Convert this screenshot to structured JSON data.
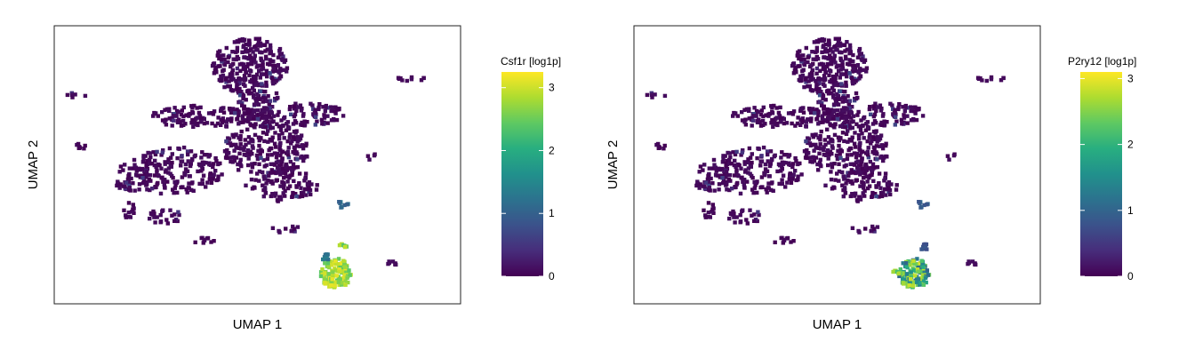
{
  "chart_data": [
    {
      "type": "scatter",
      "title": "",
      "xlabel": "UMAP 1",
      "ylabel": "UMAP 2",
      "colorbar": {
        "label": "Csf1r [log1p]",
        "ticks": [
          0,
          1,
          2,
          3
        ],
        "range": [
          0,
          3.25
        ],
        "colormap": "viridis"
      },
      "high_expression_cluster": {
        "x": 7.4,
        "y": -9.6,
        "value_range": [
          2.4,
          3.2
        ]
      },
      "secondary_spots": [
        {
          "x": 7.9,
          "y": -7.5,
          "value": 2.6
        },
        {
          "x": 6.6,
          "y": -8.3,
          "value": 1.3
        },
        {
          "x": 7.9,
          "y": -4.1,
          "value": 1.1
        }
      ]
    },
    {
      "type": "scatter",
      "title": "",
      "xlabel": "UMAP 1",
      "ylabel": "UMAP 2",
      "colorbar": {
        "label": "P2ry12 [log1p]",
        "ticks": [
          0,
          1,
          2,
          3
        ],
        "range": [
          0,
          3.1
        ],
        "colormap": "viridis"
      },
      "high_expression_cluster": {
        "x": 7.3,
        "y": -9.6,
        "value_range": [
          1.0,
          3.0
        ]
      },
      "secondary_spots": [
        {
          "x": 6.1,
          "y": -9.6,
          "value": 2.4
        },
        {
          "x": 7.9,
          "y": -7.5,
          "value": 0.8
        },
        {
          "x": 7.9,
          "y": -4.1,
          "value": 0.9
        }
      ]
    }
  ]
}
